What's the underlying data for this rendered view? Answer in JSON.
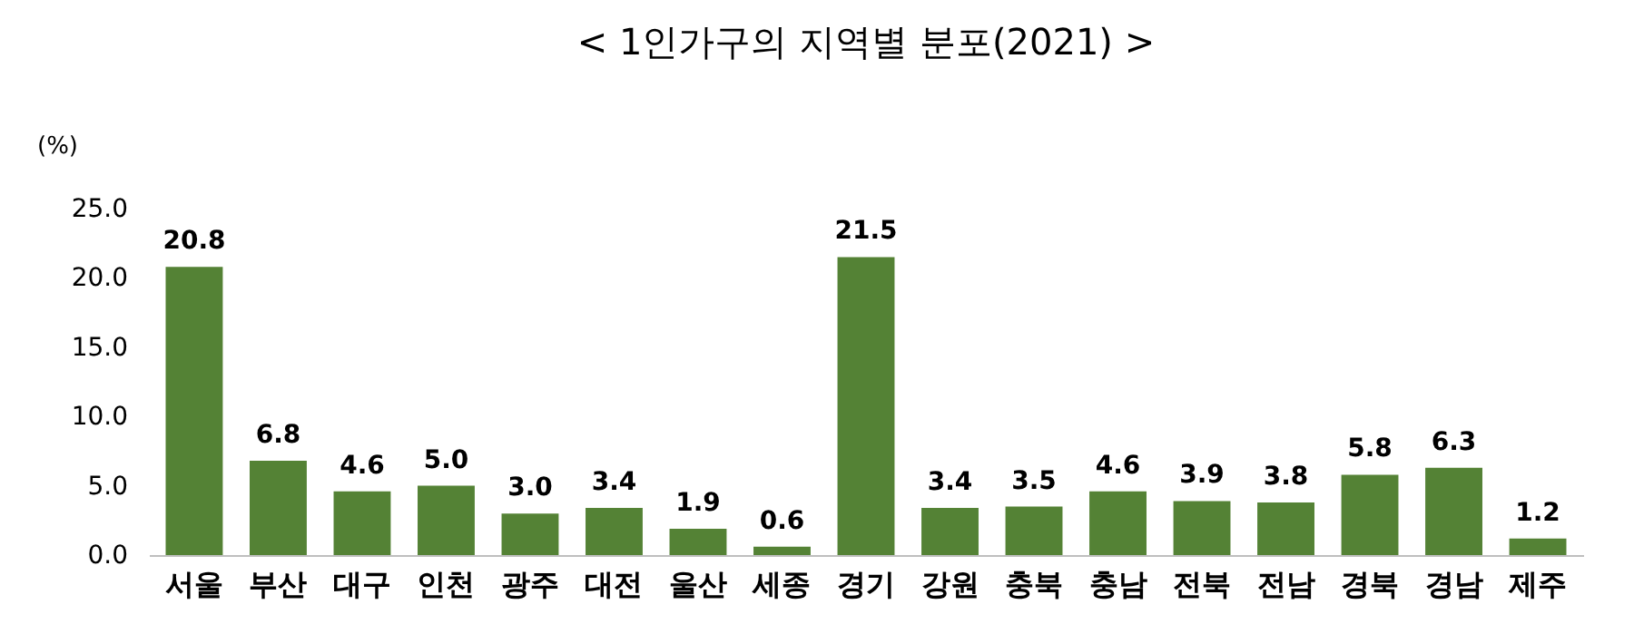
{
  "chart_data": {
    "type": "bar",
    "title": "< 1인가구의 지역별 분포(2021) >",
    "ylabel": "(%)",
    "categories": [
      "서울",
      "부산",
      "대구",
      "인천",
      "광주",
      "대전",
      "울산",
      "세종",
      "경기",
      "강원",
      "충북",
      "충남",
      "전북",
      "전남",
      "경북",
      "경남",
      "제주"
    ],
    "values": [
      20.8,
      6.8,
      4.6,
      5.0,
      3.0,
      3.4,
      1.9,
      0.6,
      21.5,
      3.4,
      3.5,
      4.6,
      3.9,
      3.8,
      5.8,
      6.3,
      1.2
    ],
    "value_labels": [
      "20.8",
      "6.8",
      "4.6",
      "5.0",
      "3.0",
      "3.4",
      "1.9",
      "0.6",
      "21.5",
      "3.4",
      "3.5",
      "4.6",
      "3.9",
      "3.8",
      "5.8",
      "6.3",
      "1.2"
    ],
    "color": "#548235",
    "ylim": [
      0,
      25
    ],
    "yticks": [
      {
        "value": 0,
        "label": "0.0"
      },
      {
        "value": 5,
        "label": "5.0"
      },
      {
        "value": 10,
        "label": "10.0"
      },
      {
        "value": 15,
        "label": "15.0"
      },
      {
        "value": 20,
        "label": "20.0"
      },
      {
        "value": 25,
        "label": "25.0"
      }
    ]
  }
}
